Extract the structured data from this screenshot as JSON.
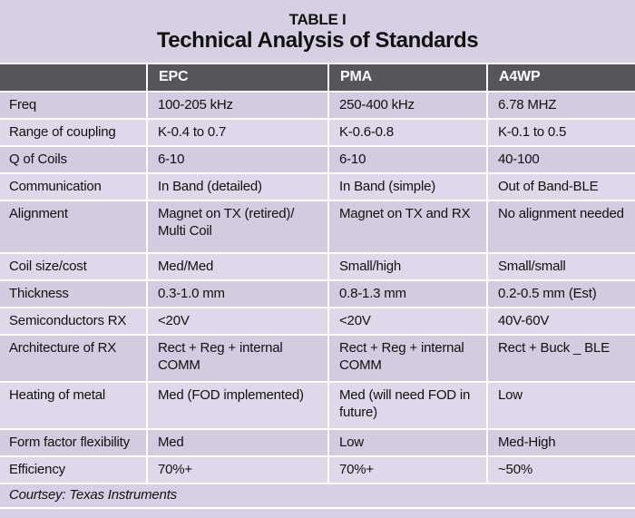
{
  "title": {
    "line1": "TABLE I",
    "line2": "Technical Analysis of Standards"
  },
  "columns": [
    "",
    "EPC",
    "PMA",
    "A4WP"
  ],
  "rows": [
    {
      "label": "Freq",
      "epc": "100-205 kHz",
      "pma": "250-400 kHz",
      "a4wp": "6.78 MHZ"
    },
    {
      "label": "Range of coupling",
      "epc": "K-0.4 to 0.7",
      "pma": "K-0.6-0.8",
      "a4wp": "K-0.1 to 0.5"
    },
    {
      "label": "Q of Coils",
      "epc": "6-10",
      "pma": "6-10",
      "a4wp": "40-100"
    },
    {
      "label": "Communication",
      "epc": "In Band (detailed)",
      "pma": "In Band (simple)",
      "a4wp": "Out of Band-BLE"
    },
    {
      "label": "Alignment",
      "epc": "Magnet on TX (retired)/ Multi Coil",
      "pma": "Magnet on TX and RX",
      "a4wp": "No alignment needed"
    },
    {
      "label": "Coil size/cost",
      "epc": "Med/Med",
      "pma": "Small/high",
      "a4wp": "Small/small"
    },
    {
      "label": "Thickness",
      "epc": "0.3-1.0 mm",
      "pma": "0.8-1.3 mm",
      "a4wp": "0.2-0.5 mm (Est)"
    },
    {
      "label": "Semiconductors RX",
      "epc": "<20V",
      "pma": "<20V",
      "a4wp": "40V-60V"
    },
    {
      "label": "Architecture of RX",
      "epc": "Rect + Reg + internal COMM",
      "pma": "Rect + Reg + internal COMM",
      "a4wp": "Rect + Buck _ BLE"
    },
    {
      "label": "Heating of metal",
      "epc": "Med (FOD implemented)",
      "pma": "Med (will need FOD in future)",
      "a4wp": "Low"
    },
    {
      "label": "Form factor flexibility",
      "epc": "Med",
      "pma": "Low",
      "a4wp": "Med-High"
    },
    {
      "label": "Efficiency",
      "epc": "70%+",
      "pma": "70%+",
      "a4wp": "~50%"
    }
  ],
  "footer": {
    "credit": "Courtsey: Texas Instruments"
  },
  "colors": {
    "band_lavender": "#d7d0e4",
    "row_dark": "#d3cbe0",
    "row_light": "#ded8ea",
    "header_gray": "#57545b",
    "header_text": "#ffffff",
    "separator": "#ffffff",
    "body_text": "#101010"
  }
}
